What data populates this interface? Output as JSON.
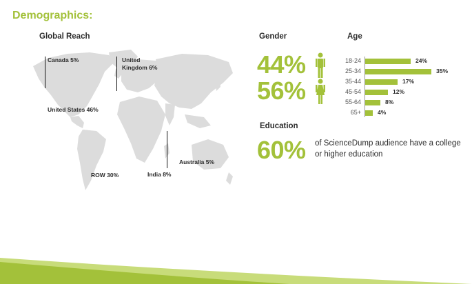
{
  "title": "Demographics:",
  "global_reach": {
    "heading": "Global Reach",
    "regions": [
      {
        "name": "Canada 5%"
      },
      {
        "name": "United Kingdom  6%",
        "line1": "United",
        "line2": "Kingdom  6%"
      },
      {
        "name": "United States 46%"
      },
      {
        "name": "Australia 5%"
      },
      {
        "name": "ROW 30%"
      },
      {
        "name": "India 8%"
      }
    ]
  },
  "gender": {
    "heading": "Gender",
    "male_pct": "44%",
    "female_pct": "56%"
  },
  "age": {
    "heading": "Age",
    "groups": [
      {
        "label": "18-24",
        "value": 24,
        "display": "24%"
      },
      {
        "label": "25-34",
        "value": 35,
        "display": "35%"
      },
      {
        "label": "35-44",
        "value": 17,
        "display": "17%"
      },
      {
        "label": "45-54",
        "value": 12,
        "display": "12%"
      },
      {
        "label": "55-64",
        "value": 8,
        "display": "8%"
      },
      {
        "label": "65+",
        "value": 4,
        "display": "4%"
      }
    ]
  },
  "education": {
    "heading": "Education",
    "pct": "60%",
    "text": "of ScienceDump audience have a college or higher education"
  },
  "colors": {
    "accent": "#a3c13a",
    "map": "#dcdcdc",
    "footer_light": "#c8dc7a"
  }
}
